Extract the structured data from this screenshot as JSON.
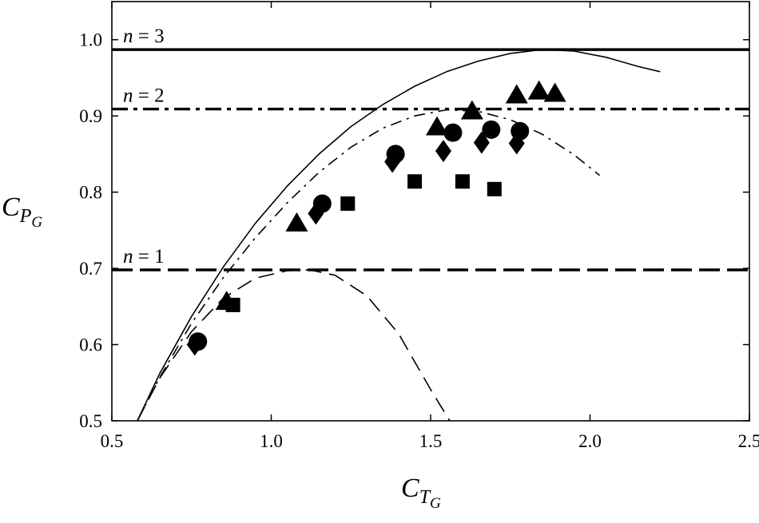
{
  "chart_data": {
    "type": "scatter",
    "xlabel": {
      "main": "C",
      "sub": "T",
      "subsub": "G"
    },
    "ylabel": {
      "main": "C",
      "sub": "P",
      "subsub": "G"
    },
    "xlim": [
      0.5,
      2.5
    ],
    "ylim": [
      0.5,
      1.05
    ],
    "x_ticks": [
      0.5,
      1.0,
      1.5,
      2.0,
      2.5
    ],
    "x_tick_labels": [
      "0.5",
      "1.0",
      "1.5",
      "2.0",
      "2.5"
    ],
    "y_ticks": [
      0.5,
      0.6,
      0.7,
      0.8,
      0.9,
      1.0
    ],
    "y_tick_labels": [
      "0.5",
      "0.6",
      "0.7",
      "0.8",
      "0.9",
      "1.0"
    ],
    "grid": false,
    "limit_lines": [
      {
        "label_prefix": "n",
        "label_rest": " = 3",
        "y": 0.987,
        "style": "solid"
      },
      {
        "label_prefix": "n",
        "label_rest": " = 2",
        "y": 0.909,
        "style": "dashdot"
      },
      {
        "label_prefix": "n",
        "label_rest": " = 1",
        "y": 0.698,
        "style": "dashed"
      }
    ],
    "curves": [
      {
        "style": "solid",
        "x": [
          0.58,
          0.65,
          0.75,
          0.85,
          0.95,
          1.05,
          1.15,
          1.25,
          1.35,
          1.45,
          1.55,
          1.65,
          1.75,
          1.85,
          1.95,
          2.05,
          2.15,
          2.22
        ],
        "y": [
          0.5,
          0.562,
          0.637,
          0.702,
          0.759,
          0.808,
          0.85,
          0.886,
          0.915,
          0.939,
          0.958,
          0.972,
          0.982,
          0.987,
          0.985,
          0.977,
          0.965,
          0.958
        ]
      },
      {
        "style": "dashdot",
        "x": [
          0.58,
          0.65,
          0.75,
          0.85,
          0.95,
          1.05,
          1.15,
          1.25,
          1.35,
          1.45,
          1.55,
          1.65,
          1.75,
          1.85,
          1.95,
          2.03
        ],
        "y": [
          0.5,
          0.557,
          0.628,
          0.688,
          0.74,
          0.786,
          0.826,
          0.859,
          0.884,
          0.9,
          0.908,
          0.906,
          0.895,
          0.876,
          0.849,
          0.822
        ]
      },
      {
        "style": "dashed",
        "x": [
          0.58,
          0.65,
          0.75,
          0.85,
          0.95,
          1.05,
          1.12,
          1.2,
          1.3,
          1.4,
          1.5,
          1.56
        ],
        "y": [
          0.5,
          0.556,
          0.617,
          0.661,
          0.687,
          0.697,
          0.698,
          0.691,
          0.664,
          0.614,
          0.541,
          0.5
        ]
      }
    ],
    "series": [
      {
        "marker": "triangle",
        "x": [
          0.86,
          1.08,
          1.52,
          1.63,
          1.77,
          1.84,
          1.89
        ],
        "y": [
          0.657,
          0.76,
          0.886,
          0.907,
          0.928,
          0.933,
          0.93
        ]
      },
      {
        "marker": "circle",
        "x": [
          0.77,
          1.16,
          1.39,
          1.57,
          1.69,
          1.78
        ],
        "y": [
          0.604,
          0.785,
          0.85,
          0.878,
          0.882,
          0.88
        ]
      },
      {
        "marker": "diamond",
        "x": [
          0.76,
          1.14,
          1.38,
          1.54,
          1.66,
          1.77
        ],
        "y": [
          0.6,
          0.772,
          0.84,
          0.854,
          0.865,
          0.864
        ]
      },
      {
        "marker": "square",
        "x": [
          0.88,
          1.24,
          1.45,
          1.6,
          1.7
        ],
        "y": [
          0.652,
          0.785,
          0.814,
          0.814,
          0.804
        ]
      }
    ]
  }
}
